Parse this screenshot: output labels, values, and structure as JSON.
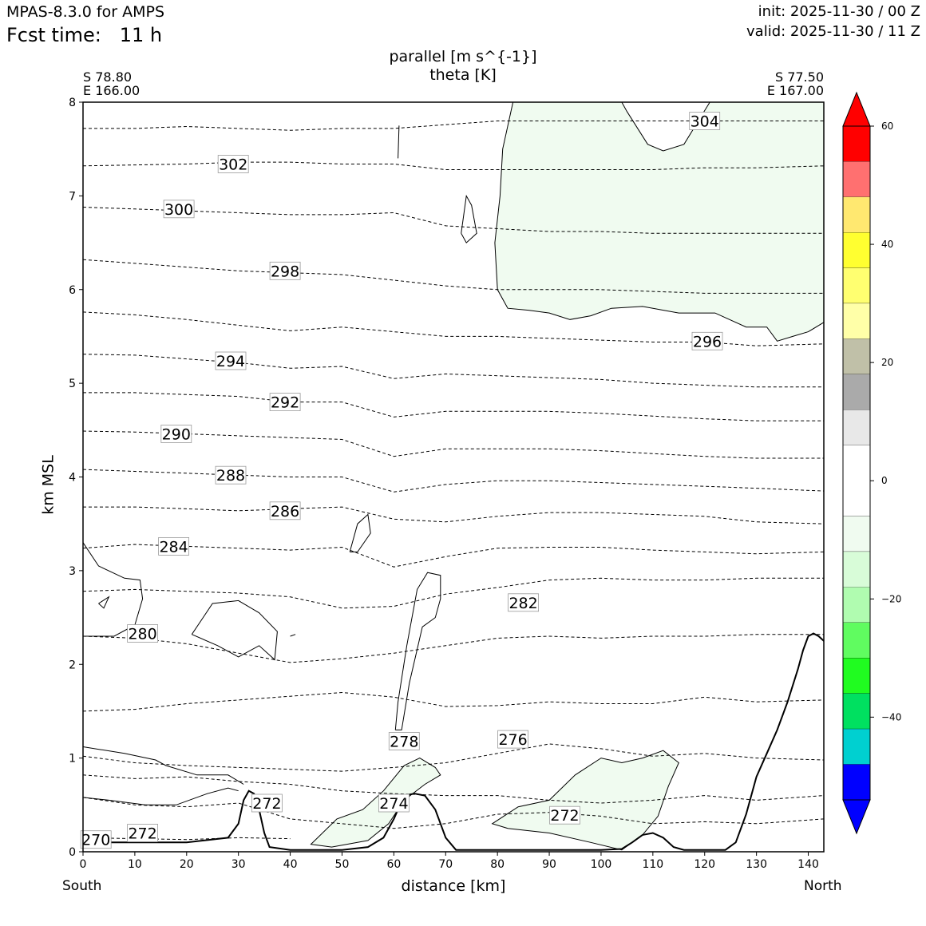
{
  "header": {
    "model": "MPAS-8.3.0 for AMPS",
    "fcst_label": "Fcst time:",
    "fcst_value": "11 h",
    "init": "init: 2025-11-30 / 00 Z",
    "valid": "valid: 2025-11-30 / 11 Z"
  },
  "plot": {
    "title": "parallel [m s^{-1}]",
    "subtitle": "theta [K]",
    "left_corner": {
      "lat": "S 78.80",
      "lon": "E 166.00"
    },
    "right_corner": {
      "lat": "S 77.50",
      "lon": "E 167.00"
    },
    "south_label": "South",
    "north_label": "North"
  },
  "colors": {
    "shade_light_green": "#f0fbf0",
    "axis": "#000000",
    "terrain_line": "#000000"
  },
  "chart_data": {
    "type": "contour",
    "xlabel": "distance [km]",
    "ylabel": "km MSL",
    "xlim": [
      0,
      143
    ],
    "ylim": [
      0,
      8
    ],
    "xticks": [
      0,
      10,
      20,
      30,
      40,
      50,
      60,
      70,
      80,
      90,
      100,
      110,
      120,
      130,
      140
    ],
    "yticks": [
      0,
      1,
      2,
      3,
      4,
      5,
      6,
      7,
      8
    ],
    "theta_contours": [
      {
        "level": 270,
        "y": [
          0.15,
          0.14,
          0.13,
          0.15,
          0.14
        ]
      },
      {
        "level": 272,
        "y": [
          0.58,
          0.5,
          0.48,
          0.52,
          0.35,
          0.3,
          0.25,
          0.3,
          0.4,
          0.42,
          0.38,
          0.3,
          0.32,
          0.3,
          0.35
        ]
      },
      {
        "level": 274,
        "y": [
          0.82,
          0.78,
          0.8,
          0.75,
          0.72,
          0.65,
          0.62,
          0.6,
          0.6,
          0.55,
          0.52,
          0.55,
          0.6,
          0.55,
          0.6
        ]
      },
      {
        "level": 276,
        "y": [
          1.02,
          0.95,
          0.92,
          0.9,
          0.88,
          0.86,
          0.9,
          0.95,
          1.05,
          1.15,
          1.1,
          1.02,
          1.05,
          1.0,
          0.98
        ]
      },
      {
        "level": 278,
        "y": [
          1.5,
          1.52,
          1.58,
          1.62,
          1.66,
          1.7,
          1.65,
          1.55,
          1.56,
          1.6,
          1.58,
          1.58,
          1.65,
          1.6,
          1.62
        ]
      },
      {
        "level": 280,
        "y": [
          2.3,
          2.28,
          2.22,
          2.12,
          2.02,
          2.06,
          2.12,
          2.2,
          2.28,
          2.3,
          2.28,
          2.3,
          2.3,
          2.32,
          2.32
        ]
      },
      {
        "level": 282,
        "y": [
          2.78,
          2.8,
          2.78,
          2.76,
          2.72,
          2.6,
          2.62,
          2.75,
          2.82,
          2.9,
          2.92,
          2.9,
          2.9,
          2.92,
          2.92
        ]
      },
      {
        "level": 284,
        "y": [
          3.24,
          3.28,
          3.26,
          3.24,
          3.22,
          3.25,
          3.04,
          3.15,
          3.24,
          3.25,
          3.25,
          3.22,
          3.2,
          3.18,
          3.2
        ]
      },
      {
        "level": 286,
        "y": [
          3.68,
          3.68,
          3.66,
          3.64,
          3.66,
          3.68,
          3.55,
          3.52,
          3.58,
          3.62,
          3.62,
          3.6,
          3.58,
          3.52,
          3.5
        ]
      },
      {
        "level": 288,
        "y": [
          4.08,
          4.06,
          4.04,
          4.02,
          4.0,
          4.0,
          3.84,
          3.92,
          3.96,
          3.96,
          3.94,
          3.92,
          3.9,
          3.88,
          3.85
        ]
      },
      {
        "level": 290,
        "y": [
          4.49,
          4.48,
          4.46,
          4.44,
          4.42,
          4.4,
          4.22,
          4.3,
          4.3,
          4.3,
          4.28,
          4.25,
          4.22,
          4.2,
          4.2
        ]
      },
      {
        "level": 292,
        "y": [
          4.9,
          4.9,
          4.88,
          4.86,
          4.8,
          4.8,
          4.64,
          4.7,
          4.7,
          4.7,
          4.68,
          4.65,
          4.62,
          4.6,
          4.6
        ]
      },
      {
        "level": 294,
        "y": [
          5.31,
          5.3,
          5.26,
          5.22,
          5.16,
          5.18,
          5.05,
          5.1,
          5.08,
          5.06,
          5.04,
          5.0,
          4.98,
          4.96,
          4.96
        ]
      },
      {
        "level": 296,
        "y": [
          5.76,
          5.73,
          5.68,
          5.62,
          5.56,
          5.6,
          5.55,
          5.5,
          5.5,
          5.48,
          5.46,
          5.44,
          5.44,
          5.4,
          5.42
        ]
      },
      {
        "level": 298,
        "y": [
          6.32,
          6.28,
          6.24,
          6.2,
          6.18,
          6.16,
          6.1,
          6.04,
          6.0,
          6.0,
          6.0,
          5.98,
          5.96,
          5.96,
          5.96
        ]
      },
      {
        "level": 300,
        "y": [
          6.88,
          6.86,
          6.84,
          6.82,
          6.8,
          6.8,
          6.82,
          6.68,
          6.65,
          6.62,
          6.62,
          6.6,
          6.6,
          6.6,
          6.6
        ]
      },
      {
        "level": 302,
        "y": [
          7.32,
          7.33,
          7.34,
          7.36,
          7.36,
          7.34,
          7.34,
          7.28,
          7.28,
          7.28,
          7.28,
          7.28,
          7.3,
          7.3,
          7.32
        ]
      },
      {
        "level": 304,
        "y": [
          7.72,
          7.72,
          7.74,
          7.72,
          7.7,
          7.72,
          7.72,
          7.76,
          7.8,
          7.8,
          7.8,
          7.8,
          7.8,
          7.8,
          7.8
        ]
      }
    ],
    "contour_labels": [
      {
        "text": "270",
        "x": 2.5,
        "y": 0.13
      },
      {
        "text": "272",
        "x": 11.5,
        "y": 0.2
      },
      {
        "text": "272",
        "x": 35.5,
        "y": 0.52
      },
      {
        "text": "274",
        "x": 60,
        "y": 0.52
      },
      {
        "text": "272",
        "x": 93,
        "y": 0.39
      },
      {
        "text": "278",
        "x": 62,
        "y": 1.18
      },
      {
        "text": "276",
        "x": 83,
        "y": 1.2
      },
      {
        "text": "280",
        "x": 11.5,
        "y": 2.33
      },
      {
        "text": "282",
        "x": 85,
        "y": 2.66
      },
      {
        "text": "284",
        "x": 17.5,
        "y": 3.26
      },
      {
        "text": "286",
        "x": 39,
        "y": 3.64
      },
      {
        "text": "288",
        "x": 28.5,
        "y": 4.02
      },
      {
        "text": "290",
        "x": 18,
        "y": 4.46
      },
      {
        "text": "292",
        "x": 39,
        "y": 4.8
      },
      {
        "text": "294",
        "x": 28.5,
        "y": 5.24
      },
      {
        "text": "296",
        "x": 120.5,
        "y": 5.45
      },
      {
        "text": "298",
        "x": 39,
        "y": 6.2
      },
      {
        "text": "300",
        "x": 18.5,
        "y": 6.86
      },
      {
        "text": "302",
        "x": 29,
        "y": 7.34
      },
      {
        "text": "304",
        "x": 120,
        "y": 7.8
      }
    ],
    "terrain": {
      "x": [
        0,
        20,
        28,
        30,
        31,
        32,
        33,
        34,
        35,
        36,
        40,
        50,
        55,
        58,
        60,
        62,
        64,
        66,
        68,
        70,
        72,
        80,
        90,
        100,
        104,
        106,
        108,
        110,
        112,
        114,
        116,
        118,
        124,
        126,
        128,
        130,
        132,
        134,
        136,
        138,
        139,
        140,
        141,
        142,
        143
      ],
      "y": [
        0.1,
        0.1,
        0.15,
        0.3,
        0.55,
        0.65,
        0.62,
        0.45,
        0.2,
        0.05,
        0.02,
        0.02,
        0.05,
        0.15,
        0.35,
        0.6,
        0.62,
        0.6,
        0.45,
        0.15,
        0.02,
        0.02,
        0.02,
        0.02,
        0.03,
        0.1,
        0.18,
        0.2,
        0.15,
        0.05,
        0.02,
        0.02,
        0.02,
        0.1,
        0.4,
        0.8,
        1.05,
        1.3,
        1.6,
        1.95,
        2.15,
        2.3,
        2.33,
        2.3,
        2.25
      ]
    },
    "colorbar": {
      "ticks": [
        60,
        40,
        20,
        0,
        -20,
        -40
      ],
      "tick_labels": [
        "60",
        "40",
        "20",
        "0",
        "−20",
        "−40"
      ],
      "levels": [
        60,
        54,
        48,
        42,
        36,
        30,
        24,
        18,
        12,
        6,
        -6,
        -12,
        -18,
        -24,
        -30,
        -36,
        -42,
        -48,
        -54
      ],
      "colors": [
        "#ff0000",
        "#ff7070",
        "#ffe870",
        "#ffff30",
        "#ffff70",
        "#ffffa8",
        "#c0c0a8",
        "#aaaaaa",
        "#e8e8e8",
        "#ffffff",
        "#f0fbf0",
        "#d8fcd8",
        "#b0fcb0",
        "#60fc60",
        "#20fc20",
        "#00e060",
        "#00d0d0",
        "#0000ff"
      ],
      "extend_max_color": "#ff0000",
      "extend_min_color": "#0000ff"
    }
  }
}
